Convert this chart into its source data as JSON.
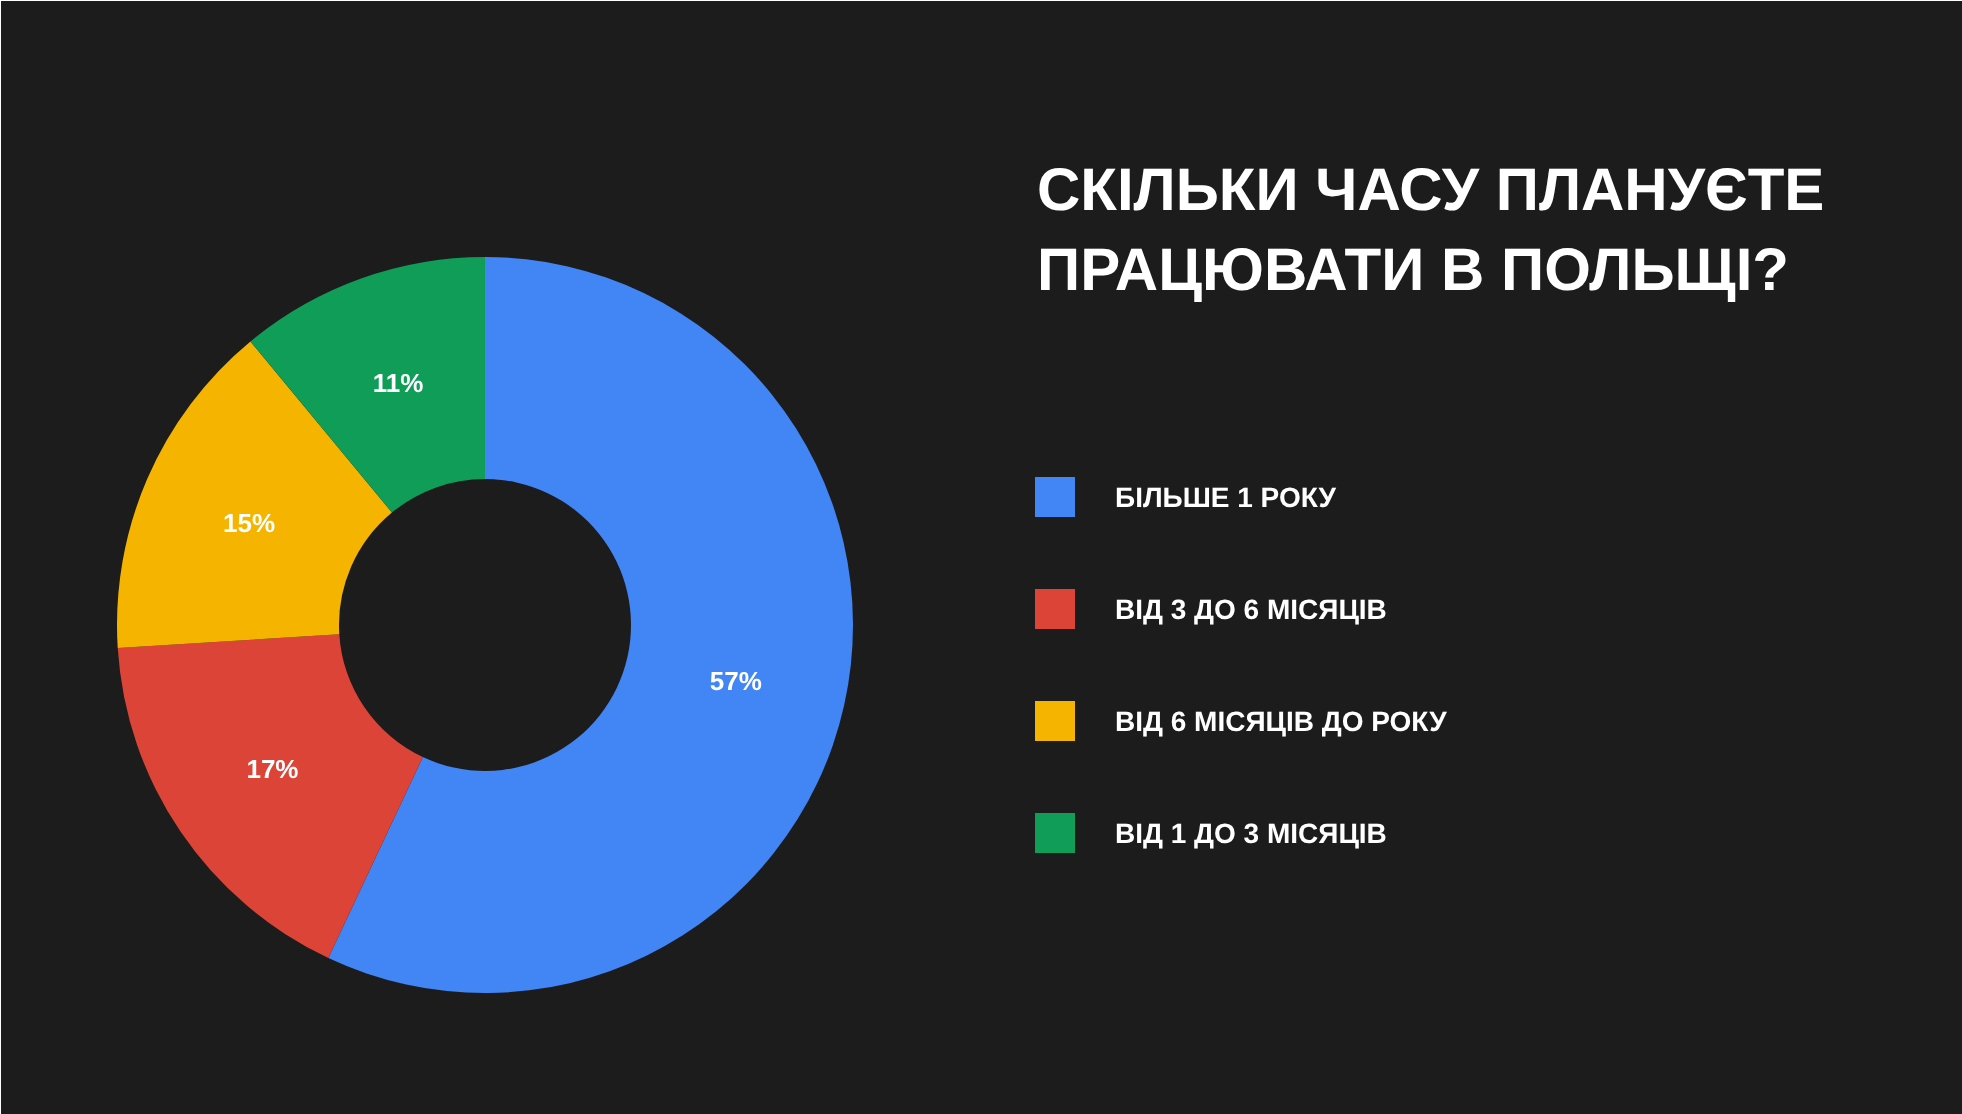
{
  "chart_data": {
    "type": "donut",
    "title": "СКІЛЬКИ ЧАСУ ПЛАНУЄТЕ\nПРАЦЮВАТИ В ПОЛЬЩІ?",
    "categories": [
      "БІЛЬШЕ 1 РОКУ",
      "ВІД 3 ДО 6 МІСЯЦІВ",
      "ВІД 6 МІСЯЦІВ ДО РОКУ",
      "ВІД 1 ДО 3 МІСЯЦІВ"
    ],
    "values": [
      57,
      17,
      15,
      11
    ],
    "value_labels": [
      "57%",
      "17%",
      "15%",
      "11%"
    ],
    "colors": [
      "#4285f4",
      "#db4437",
      "#f4b400",
      "#0f9d58"
    ],
    "legend": "right"
  }
}
